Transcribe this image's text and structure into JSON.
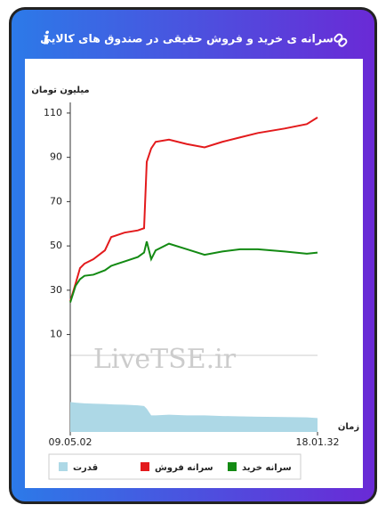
{
  "header": {
    "title": "سرانه ی خرید و فروش حقیقی در صندوق های کالایی"
  },
  "chart_data": {
    "type": "line",
    "ylabel": "میلیون تومان",
    "xlabel": "زمان",
    "watermark": "LiveTSE.ir",
    "x": [
      0,
      6,
      11,
      16,
      26,
      39,
      46,
      61,
      76,
      83,
      86,
      91,
      96,
      111,
      131,
      151,
      171,
      191,
      211,
      241,
      266,
      278
    ],
    "xlim": [
      0,
      278
    ],
    "xticks": [
      {
        "value": 0,
        "label": "09.05.02"
      },
      {
        "value": 278,
        "label": "18.01.32"
      }
    ],
    "ylim": [
      -34,
      116
    ],
    "yticks": [
      10,
      30,
      50,
      70,
      90,
      110
    ],
    "y2lim": [
      0,
      10
    ],
    "series": [
      {
        "name": "قدرت",
        "color": "#add8e6",
        "axis": "y2",
        "kind": "area",
        "values": [
          0.9,
          0.88,
          0.87,
          0.86,
          0.85,
          0.84,
          0.83,
          0.82,
          0.8,
          0.78,
          0.7,
          0.5,
          0.5,
          0.52,
          0.5,
          0.5,
          0.48,
          0.47,
          0.46,
          0.45,
          0.44,
          0.42
        ]
      },
      {
        "name": "سرانه فروش",
        "color": "#e31a1c",
        "values": [
          25,
          33,
          40,
          42,
          44,
          48,
          54,
          56,
          57,
          58,
          88,
          94,
          97,
          98,
          96,
          94.5,
          97,
          99,
          101,
          103,
          105,
          108
        ]
      },
      {
        "name": "سرانه خرید",
        "color": "#138a13",
        "values": [
          24.5,
          32,
          35,
          36.5,
          37,
          39,
          41,
          43,
          45,
          47,
          52,
          44,
          48,
          51,
          48.5,
          46,
          47.5,
          48.5,
          48.5,
          47.5,
          46.5,
          47
        ]
      }
    ]
  }
}
